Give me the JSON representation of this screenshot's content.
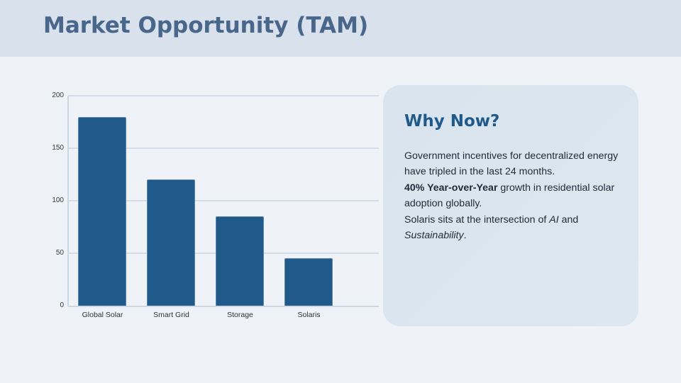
{
  "header": {
    "title": "Market Opportunity (TAM)"
  },
  "chart_data": {
    "type": "bar",
    "title": "",
    "categories": [
      "Global Solar",
      "Smart Grid",
      "Storage",
      "Solaris"
    ],
    "values": [
      180,
      120,
      85,
      45
    ],
    "xlabel": "",
    "ylabel": "",
    "ylim": [
      0,
      200
    ],
    "yticks": [
      "0",
      "50",
      "100",
      "150",
      "200"
    ],
    "grid": true,
    "legend": null,
    "bar_color": "#1f5a8b"
  },
  "card": {
    "heading": "Why Now?",
    "para1": "Government incentives for decentralized energy have tripled in the last 24 months.",
    "para2_bold": "40% Year-over-Year",
    "para2_rest": " growth in residential solar adoption globally.",
    "para3_start": "Solaris sits at the intersection of ",
    "para3_ai": "AI",
    "para3_mid": " and ",
    "para3_sust": "Sustainability",
    "para3_end": "."
  },
  "colors": {
    "accent": "#1f5a8b",
    "title": "#48678a",
    "header_bg": "#d9e1ec",
    "page_bg": "#eff3f8"
  }
}
